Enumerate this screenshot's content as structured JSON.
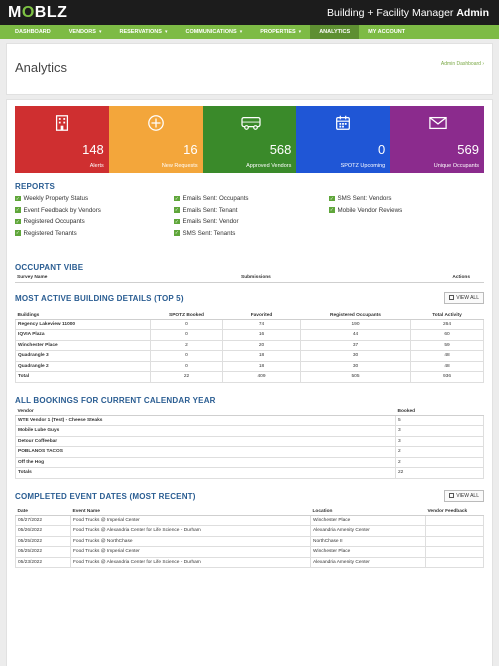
{
  "app": {
    "logo_left": "M",
    "logo_o": "O",
    "logo_right": "BLZ",
    "title": "Building + Facility Manager",
    "role": "Admin"
  },
  "nav": [
    {
      "label": "DASHBOARD",
      "caret": false
    },
    {
      "label": "VENDORS",
      "caret": true
    },
    {
      "label": "RESERVATIONS",
      "caret": true
    },
    {
      "label": "COMMUNICATIONS",
      "caret": true
    },
    {
      "label": "PROPERTIES",
      "caret": true
    },
    {
      "label": "ANALYTICS",
      "caret": false,
      "active": true
    },
    {
      "label": "MY ACCOUNT",
      "caret": false
    }
  ],
  "page": {
    "title": "Analytics",
    "breadcrumb": "Admin Dashboard ›"
  },
  "tiles": [
    {
      "value": "148",
      "label": "Alerts",
      "color": "#cf2f30",
      "icon": "building-icon"
    },
    {
      "value": "16",
      "label": "New Requests",
      "color": "#f3a63b",
      "icon": "plus-circle-icon"
    },
    {
      "value": "568",
      "label": "Approved Vendors",
      "color": "#3a8a2a",
      "icon": "truck-icon"
    },
    {
      "value": "0",
      "label": "SPOTZ Upcoming",
      "color": "#1f56d6",
      "icon": "calendar-icon"
    },
    {
      "value": "569",
      "label": "Unique Occupants",
      "color": "#8b2b8d",
      "icon": "envelope-icon"
    }
  ],
  "reports": {
    "title": "REPORTS",
    "items": [
      "Weekly Property Status",
      "Emails Sent: Occupants",
      "SMS Sent: Vendors",
      "Event Feedback by Vendors",
      "Emails Sent: Tenant",
      "Mobile Vendor Reviews",
      "Registered Occupants",
      "Emails Sent: Vendor",
      "",
      "Registered Tenants",
      "SMS Sent: Tenants",
      ""
    ]
  },
  "vibe": {
    "title": "OCCUPANT VIBE",
    "columns": [
      "Survey Name",
      "Submissions",
      "Actions"
    ]
  },
  "buildings": {
    "title": "MOST ACTIVE BUILDING DETAILS (TOP 5)",
    "view_all": "VIEW ALL",
    "columns": [
      "Buildings",
      "SPOTZ Booked",
      "Favorited",
      "Registered Occupants",
      "Total Activity"
    ],
    "rows": [
      [
        "Regency Lakeview 11000",
        "0",
        "74",
        "190",
        "264"
      ],
      [
        "IQVIA Plaza",
        "0",
        "16",
        "44",
        "60"
      ],
      [
        "Winchester Place",
        "2",
        "20",
        "37",
        "59"
      ],
      [
        "Quadrangle 3",
        "0",
        "18",
        "30",
        "48"
      ],
      [
        "Quadrangle 2",
        "0",
        "18",
        "30",
        "48"
      ],
      [
        "Total",
        "22",
        "409",
        "505",
        "936"
      ]
    ]
  },
  "bookings": {
    "title": "ALL BOOKINGS FOR CURRENT CALENDAR YEAR",
    "columns": [
      "Vendor",
      "Booked"
    ],
    "rows": [
      [
        "WTE Vendor 1 (Test) - Cheese Steaks",
        "5"
      ],
      [
        "Mobile Lube Guys",
        "3"
      ],
      [
        "Detour Coffeebar",
        "3"
      ],
      [
        "POBLANOS TACOS",
        "2"
      ],
      [
        "Off the Hog",
        "2"
      ],
      [
        "Totals",
        "22"
      ]
    ]
  },
  "events": {
    "title": "COMPLETED EVENT DATES (MOST RECENT)",
    "view_all": "VIEW ALL",
    "columns": [
      "Date",
      "Event Name",
      "Location",
      "Vendor Feedback"
    ],
    "rows": [
      [
        "05/27/2022",
        "Food Trucks @ Imperial Center",
        "Winchester Place",
        ""
      ],
      [
        "05/26/2022",
        "Food Trucks @ Alexandria Center for Life Science - Durham",
        "Alexandria Amenity Center",
        ""
      ],
      [
        "05/25/2022",
        "Food Trucks @ NorthChase",
        "NorthChase II",
        ""
      ],
      [
        "05/25/2022",
        "Food Trucks @ Imperial Center",
        "Winchester Place",
        ""
      ],
      [
        "05/23/2022",
        "Food Trucks @ Alexandria Center for Life Science - Durham",
        "Alexandria Amenity Center",
        ""
      ]
    ]
  }
}
